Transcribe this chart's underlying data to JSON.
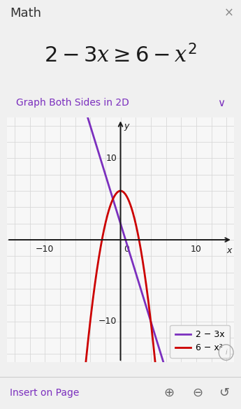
{
  "title_bar": "Math",
  "close_symbol": "×",
  "equation_latex": "2-3x\\geq 6-x^2",
  "button_text": "Graph Both Sides in 2D",
  "line1_label": "2 − 3x",
  "line2_label": "6 − x²",
  "line1_color": "#7B2FBE",
  "line2_color": "#CC0000",
  "bg_color": "#FFFFFF",
  "panel_bg": "#F0F0F0",
  "graph_bg": "#F7F7F7",
  "button_border": "#7B2FBE",
  "button_text_color": "#7B2FBE",
  "grid_color": "#D8D8D8",
  "axis_color": "#1A1A1A",
  "tick_label_color": "#1A1A1A",
  "xlim": [
    -15,
    15
  ],
  "ylim": [
    -15,
    15
  ],
  "xtick_vals": [
    -10,
    0,
    10
  ],
  "ytick_vals": [
    10,
    -10
  ],
  "insert_text": "Insert on Page",
  "insert_color": "#7B2FBE",
  "title_fontsize": 13,
  "eq_fontsize": 22,
  "btn_fontsize": 10,
  "tick_fontsize": 9,
  "legend_fontsize": 9,
  "line_width": 2.0,
  "fig_width": 3.45,
  "fig_height": 5.85,
  "fig_dpi": 100
}
